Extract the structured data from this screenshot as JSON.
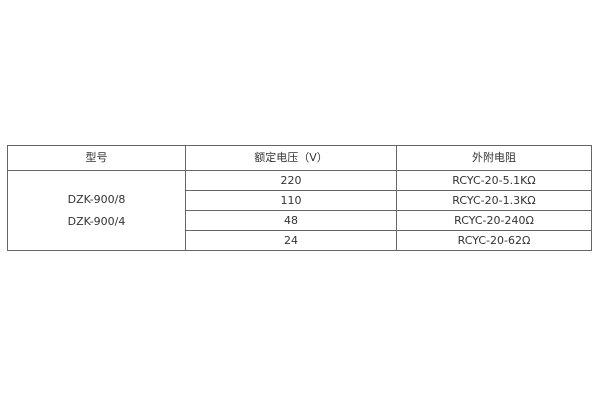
{
  "table": {
    "headers": [
      "型号",
      "额定电压（V）",
      "外附电阻"
    ],
    "models": [
      "DZK-900/8",
      "DZK-900/4"
    ],
    "rows": [
      {
        "voltage": "220",
        "resistor": "RCYC-20-5.1KΩ"
      },
      {
        "voltage": "110",
        "resistor": "RCYC-20-1.3KΩ"
      },
      {
        "voltage": "48",
        "resistor": "RCYC-20-240Ω"
      },
      {
        "voltage": "24",
        "resistor": "RCYC-20-62Ω"
      }
    ]
  }
}
